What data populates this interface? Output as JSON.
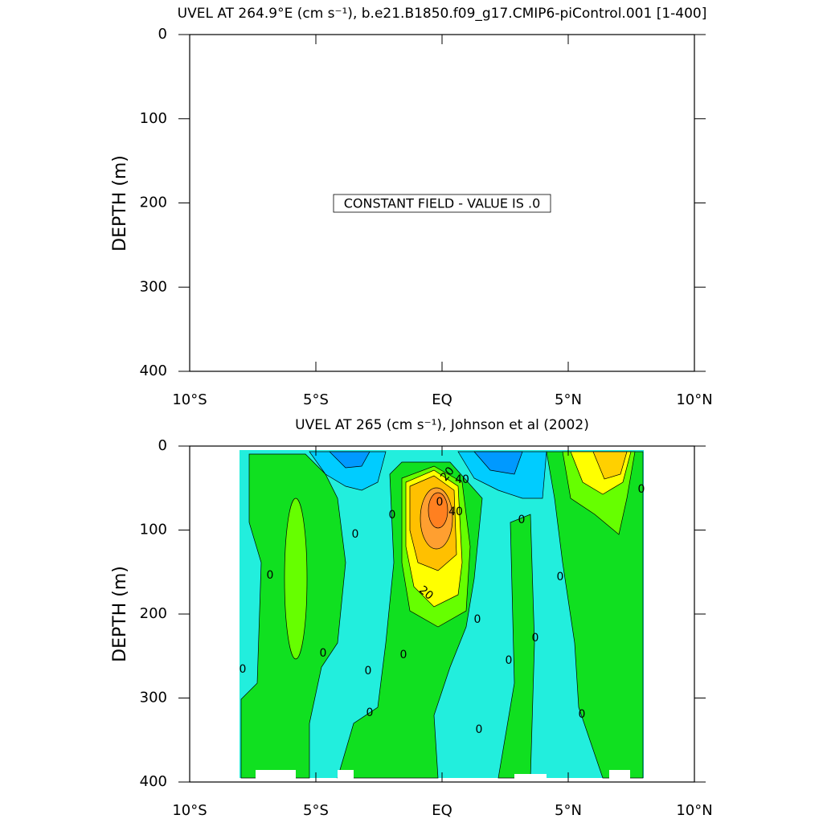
{
  "chart_data": [
    {
      "type": "contour",
      "title": "UVEL AT 264.9°E (cm s⁻¹), b.e21.B1850.f09_g17.CMIP6-piControl.001 [1-400]",
      "ylabel": "DEPTH (m)",
      "annotation": "CONSTANT FIELD - VALUE IS .0",
      "xlim": [
        -10,
        10
      ],
      "ylim": [
        400,
        0
      ],
      "xticks": [
        {
          "value": -10,
          "label": "10°S"
        },
        {
          "value": -5,
          "label": "5°S"
        },
        {
          "value": 0,
          "label": "EQ"
        },
        {
          "value": 5,
          "label": "5°N"
        },
        {
          "value": 10,
          "label": "10°N"
        }
      ],
      "yticks": [
        0,
        100,
        200,
        300,
        400
      ]
    },
    {
      "type": "contour",
      "title": "UVEL AT 265 (cm s⁻¹), Johnson et al (2002)",
      "ylabel": "DEPTH (m)",
      "contour_labels": [
        20,
        40,
        40,
        20,
        0,
        0,
        0,
        0,
        0,
        0,
        0,
        0,
        0,
        0,
        0,
        0,
        0,
        0,
        0,
        0,
        0
      ],
      "xlim": [
        -10,
        10
      ],
      "ylim": [
        400,
        0
      ],
      "xticks": [
        {
          "value": -10,
          "label": "10°S"
        },
        {
          "value": -5,
          "label": "5°S"
        },
        {
          "value": 0,
          "label": "EQ"
        },
        {
          "value": 5,
          "label": "5°N"
        },
        {
          "value": 10,
          "label": "10°N"
        }
      ],
      "yticks": [
        0,
        100,
        200,
        300,
        400
      ]
    }
  ]
}
